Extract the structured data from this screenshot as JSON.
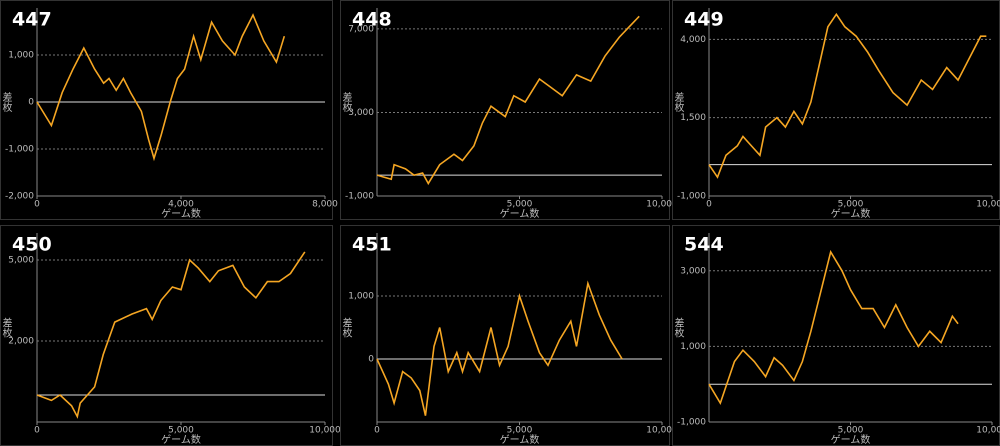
{
  "chart_data": [
    {
      "type": "line",
      "title": "447",
      "x_label": "ゲーム数",
      "y_label": "差枚",
      "color": "#f5a623",
      "grid": true,
      "x": [
        0,
        400,
        700,
        1000,
        1300,
        1600,
        1850,
        2000,
        2200,
        2400,
        2600,
        2900,
        3100,
        3250,
        3450,
        3700,
        3900,
        4100,
        4350,
        4550,
        4850,
        5150,
        5500,
        5700,
        6000,
        6300,
        6650,
        6870
      ],
      "values": [
        0,
        -500,
        200,
        700,
        1150,
        700,
        400,
        500,
        250,
        500,
        200,
        -200,
        -800,
        -1200,
        -700,
        0,
        500,
        700,
        1400,
        900,
        1700,
        1300,
        1000,
        1400,
        1850,
        1300,
        850,
        1400
      ],
      "xlim": [
        0,
        8000
      ],
      "ylim": [
        -2000,
        2000
      ],
      "xticks": [
        0,
        {
          "value": 4000,
          "label": "4,000"
        },
        {
          "value": 8000,
          "label": "8,000"
        }
      ],
      "yticks": [
        {
          "value": -2000,
          "label": "-2,000"
        },
        {
          "value": -1000,
          "label": "-1,000"
        },
        0,
        {
          "value": 1000,
          "label": "1,000"
        }
      ]
    },
    {
      "type": "line",
      "title": "448",
      "x_label": "ゲーム数",
      "y_label": "差枚",
      "color": "#f5a623",
      "grid": true,
      "x": [
        0,
        500,
        600,
        1000,
        1300,
        1600,
        1800,
        2200,
        2700,
        3000,
        3400,
        3700,
        4000,
        4500,
        4800,
        5200,
        5700,
        6000,
        6500,
        7000,
        7500,
        8000,
        8500,
        9200
      ],
      "values": [
        0,
        -200,
        500,
        300,
        0,
        100,
        -400,
        500,
        1000,
        700,
        1400,
        2500,
        3300,
        2800,
        3800,
        3500,
        4600,
        4300,
        3800,
        4800,
        4500,
        5700,
        6600,
        7600
      ],
      "xlim": [
        0,
        10000
      ],
      "ylim": [
        -1000,
        8000
      ],
      "xticks": [
        {
          "value": 5000,
          "label": "5,000"
        },
        {
          "value": 10000,
          "label": "10,000"
        }
      ],
      "yticks": [
        {
          "value": -1000,
          "label": "-1,000"
        },
        {
          "value": 3000,
          "label": "3,000"
        },
        {
          "value": 7000,
          "label": "7,000"
        }
      ]
    },
    {
      "type": "line",
      "title": "449",
      "x_label": "ゲーム数",
      "y_label": "差枚",
      "color": "#f5a623",
      "grid": true,
      "x": [
        0,
        300,
        600,
        1000,
        1200,
        1400,
        1800,
        2000,
        2400,
        2700,
        3000,
        3300,
        3600,
        3800,
        4200,
        4500,
        4800,
        5200,
        5600,
        6000,
        6500,
        7000,
        7500,
        7900,
        8400,
        8800,
        9200,
        9600,
        9800
      ],
      "values": [
        0,
        -400,
        300,
        600,
        900,
        700,
        300,
        1200,
        1500,
        1200,
        1700,
        1300,
        2000,
        2800,
        4400,
        4800,
        4400,
        4100,
        3600,
        3000,
        2300,
        1900,
        2700,
        2400,
        3100,
        2700,
        3400,
        4100,
        4100
      ],
      "xlim": [
        0,
        10000
      ],
      "ylim": [
        -1000,
        5000
      ],
      "xticks": [
        0,
        {
          "value": 5000,
          "label": "5,000"
        },
        {
          "value": 10000,
          "label": "10,000"
        }
      ],
      "yticks": [
        {
          "value": -1000,
          "label": "-1,000"
        },
        {
          "value": 1500,
          "label": "1,500"
        },
        {
          "value": 4000,
          "label": "4,000"
        }
      ]
    },
    {
      "type": "line",
      "title": "450",
      "x_label": "ゲーム数",
      "y_label": "差枚",
      "color": "#f5a623",
      "grid": true,
      "x": [
        0,
        500,
        800,
        1200,
        1400,
        1500,
        2000,
        2300,
        2700,
        3300,
        3800,
        4000,
        4300,
        4700,
        5000,
        5300,
        5600,
        6000,
        6300,
        6800,
        7200,
        7600,
        8000,
        8400,
        8800,
        9300
      ],
      "values": [
        0,
        -200,
        0,
        -400,
        -800,
        -300,
        300,
        1500,
        2700,
        3000,
        3200,
        2800,
        3500,
        4000,
        3900,
        5000,
        4700,
        4200,
        4600,
        4800,
        4000,
        3600,
        4200,
        4200,
        4500,
        5300
      ],
      "xlim": [
        0,
        10000
      ],
      "ylim": [
        -1000,
        6000
      ],
      "xticks": [
        0,
        {
          "value": 5000,
          "label": "5,000"
        },
        {
          "value": 10000,
          "label": "10,000"
        }
      ],
      "yticks": [
        {
          "value": 2000,
          "label": "2,000"
        },
        {
          "value": 5000,
          "label": "5,000"
        }
      ]
    },
    {
      "type": "line",
      "title": "451",
      "x_label": "ゲーム数",
      "y_label": "差枚",
      "color": "#f5a623",
      "grid": true,
      "x": [
        0,
        400,
        600,
        900,
        1200,
        1500,
        1700,
        2000,
        2200,
        2500,
        2800,
        3000,
        3200,
        3600,
        4000,
        4300,
        4600,
        5000,
        5300,
        5700,
        6000,
        6400,
        6800,
        7000,
        7400,
        7800,
        8200,
        8600
      ],
      "values": [
        0,
        -400,
        -700,
        -200,
        -300,
        -500,
        -900,
        200,
        500,
        -200,
        100,
        -200,
        100,
        -200,
        500,
        -100,
        200,
        1000,
        600,
        100,
        -100,
        300,
        600,
        200,
        1200,
        700,
        300,
        0
      ],
      "xlim": [
        0,
        10000
      ],
      "ylim": [
        -1000,
        2000
      ],
      "xticks": [
        0,
        {
          "value": 5000,
          "label": "5,000"
        },
        {
          "value": 10000,
          "label": "10,000"
        }
      ],
      "yticks": [
        0,
        {
          "value": 1000,
          "label": "1,000"
        }
      ]
    },
    {
      "type": "line",
      "title": "544",
      "x_label": "ゲーム数",
      "y_label": "差枚",
      "color": "#f5a623",
      "grid": true,
      "x": [
        0,
        400,
        900,
        1200,
        1600,
        2000,
        2300,
        2600,
        3000,
        3300,
        3600,
        4000,
        4300,
        4700,
        5000,
        5400,
        5800,
        6200,
        6600,
        7000,
        7400,
        7800,
        8200,
        8600,
        8800
      ],
      "values": [
        0,
        -500,
        600,
        900,
        600,
        200,
        700,
        500,
        100,
        600,
        1400,
        2600,
        3500,
        3000,
        2500,
        2000,
        2000,
        1500,
        2100,
        1500,
        1000,
        1400,
        1100,
        1800,
        1600
      ],
      "xlim": [
        0,
        10000
      ],
      "ylim": [
        -1000,
        4000
      ],
      "xticks": [
        {
          "value": 5000,
          "label": "5,000"
        },
        {
          "value": 10000,
          "label": "10,000"
        }
      ],
      "yticks": [
        {
          "value": -1000,
          "label": "-1,000"
        },
        {
          "value": 1000,
          "label": "1,000"
        },
        {
          "value": 3000,
          "label": "3,000"
        }
      ]
    }
  ]
}
